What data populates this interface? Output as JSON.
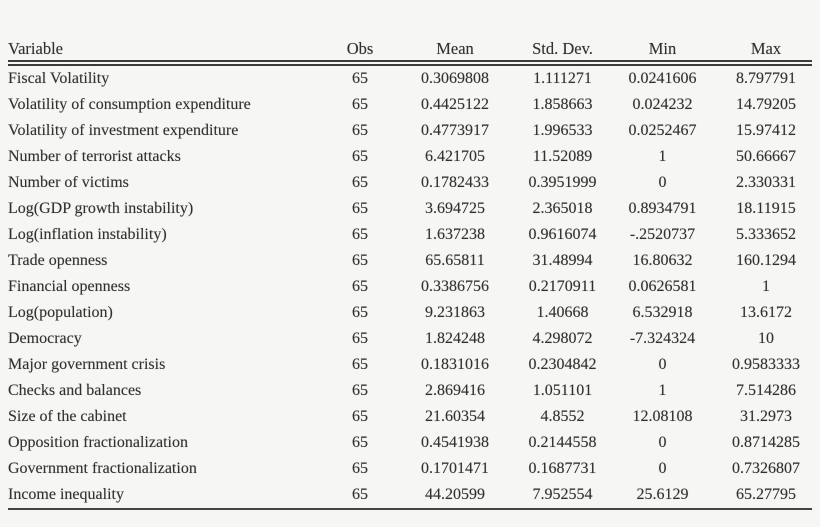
{
  "table": {
    "columns": [
      "Variable",
      "Obs",
      "Mean",
      "Std. Dev.",
      "Min",
      "Max"
    ],
    "rows": [
      [
        "Fiscal Volatility",
        "65",
        "0.3069808",
        "1.111271",
        "0.0241606",
        "8.797791"
      ],
      [
        "Volatility of consumption expenditure",
        "65",
        "0.4425122",
        "1.858663",
        "0.024232",
        "14.79205"
      ],
      [
        "Volatility of investment expenditure",
        "65",
        "0.4773917",
        "1.996533",
        "0.0252467",
        "15.97412"
      ],
      [
        "Number of terrorist attacks",
        "65",
        "6.421705",
        "11.52089",
        "1",
        "50.66667"
      ],
      [
        "Number of victims",
        "65",
        "0.1782433",
        "0.3951999",
        "0",
        "2.330331"
      ],
      [
        "Log(GDP growth instability)",
        "65",
        "3.694725",
        "2.365018",
        "0.8934791",
        "18.11915"
      ],
      [
        "Log(inflation instability)",
        "65",
        "1.637238",
        "0.9616074",
        "-.2520737",
        "5.333652"
      ],
      [
        "Trade openness",
        "65",
        "65.65811",
        "31.48994",
        "16.80632",
        "160.1294"
      ],
      [
        "Financial openness",
        "65",
        "0.3386756",
        "0.2170911",
        "0.0626581",
        "1"
      ],
      [
        "Log(population)",
        "65",
        "9.231863",
        "1.40668",
        "6.532918",
        "13.6172"
      ],
      [
        "Democracy",
        "65",
        "1.824248",
        "4.298072",
        "-7.324324",
        "10"
      ],
      [
        "Major government crisis",
        "65",
        "0.1831016",
        "0.2304842",
        "0",
        "0.9583333"
      ],
      [
        "Checks and balances",
        "65",
        "2.869416",
        "1.051101",
        "1",
        "7.514286"
      ],
      [
        "Size of the cabinet",
        "65",
        "21.60354",
        "4.8552",
        "12.08108",
        "31.2973"
      ],
      [
        "Opposition fractionalization",
        "65",
        "0.4541938",
        "0.2144558",
        "0",
        "0.8714285"
      ],
      [
        "Government fractionalization",
        "65",
        "0.1701471",
        "0.1687731",
        "0",
        "0.7326807"
      ],
      [
        "Income inequality",
        "65",
        "44.20599",
        "7.952554",
        "25.6129",
        "65.27795"
      ]
    ]
  },
  "style": {
    "background_color": "#f6f6f4",
    "text_color": "#32312e",
    "rule_color": "#3d3c39"
  }
}
